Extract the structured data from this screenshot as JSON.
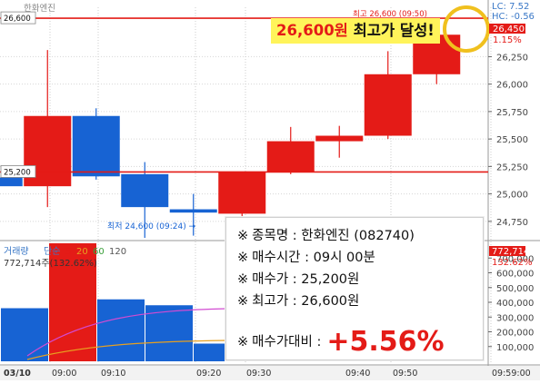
{
  "chart_data": [
    {
      "type": "candlestick",
      "title": "",
      "x_ticks": [
        "03/10",
        "09:00",
        "09:10",
        "09:20",
        "09:30",
        "09:40",
        "09:50",
        "09:59:00"
      ],
      "y_ticks": [
        "26,250",
        "26,000",
        "25,750",
        "25,500",
        "25,250",
        "25,000",
        "24,750"
      ],
      "ylim": [
        24600,
        26700
      ],
      "candles": [
        {
          "time": "prev",
          "open": 25150,
          "high": 25480,
          "low": 25010,
          "close": 25070
        },
        {
          "time": "09:00",
          "open": 25070,
          "high": 26310,
          "low": 24880,
          "close": 25710
        },
        {
          "time": "09:10",
          "open": 25710,
          "high": 25780,
          "low": 25130,
          "close": 25160
        },
        {
          "time": "09:20",
          "open": 25180,
          "high": 25290,
          "low": 24600,
          "close": 24880
        },
        {
          "time": "09:25",
          "open": 24860,
          "high": 25000,
          "low": 24620,
          "close": 24830
        },
        {
          "time": "09:30",
          "open": 24820,
          "high": 25200,
          "low": 24780,
          "close": 25200
        },
        {
          "time": "09:35",
          "open": 25200,
          "high": 25610,
          "low": 25180,
          "close": 25480
        },
        {
          "time": "09:40",
          "open": 25480,
          "high": 25620,
          "low": 25330,
          "close": 25530
        },
        {
          "time": "09:45",
          "open": 25530,
          "high": 26300,
          "low": 25500,
          "close": 26090
        },
        {
          "time": "09:50",
          "open": 26090,
          "high": 26600,
          "low": 26000,
          "close": 26450
        }
      ],
      "reference_lines": [
        {
          "label": "26,600",
          "value": 26600,
          "color": "#e41b17"
        },
        {
          "label": "25,200",
          "value": 25200,
          "color": "#e41b17"
        }
      ],
      "right_labels": {
        "lc": "LC: 7.52",
        "hc": "HC: -0.56",
        "price": "26,450",
        "pct": "1.15%"
      },
      "high_marker_text": "최고 26,600 (09:50)",
      "low_marker_text": "최저 24,600 (09:24) →",
      "top_left_labels": [
        "한화엔진"
      ]
    },
    {
      "type": "bar",
      "title": "",
      "legend": {
        "name": "거래량",
        "ma_label": "단순",
        "ma_periods": [
          "5",
          "20",
          "60",
          "120"
        ]
      },
      "summary": "772,714주(132.62%)",
      "y_ticks": [
        "700,000",
        "600,000",
        "500,000",
        "400,000",
        "300,000",
        "200,000",
        "100,000"
      ],
      "ylim": [
        0,
        800000
      ],
      "right_labels": {
        "volume": "772,714",
        "pct": "132.62%"
      },
      "values": [
        360000,
        820000,
        420000,
        380000,
        120000,
        100000,
        70000,
        60000,
        90000,
        130000
      ]
    }
  ],
  "callout": {
    "number": "26,600원",
    "text": " 최고가 달성!"
  },
  "info": {
    "mark": "※",
    "stock": "종목명 : 한화엔진 (082740)",
    "buy_time": "매수시간 : 09시 00분",
    "buy_price": "매수가 : 25,200원",
    "high_price": "최고가 : 26,600원",
    "diff_label": "매수가대비 :",
    "diff_value": "+5.56%"
  },
  "colors": {
    "up": "#e41b17",
    "down": "#1763d3",
    "highlight_circle": "#f0c01e",
    "callout_bg": "#fff45a"
  }
}
